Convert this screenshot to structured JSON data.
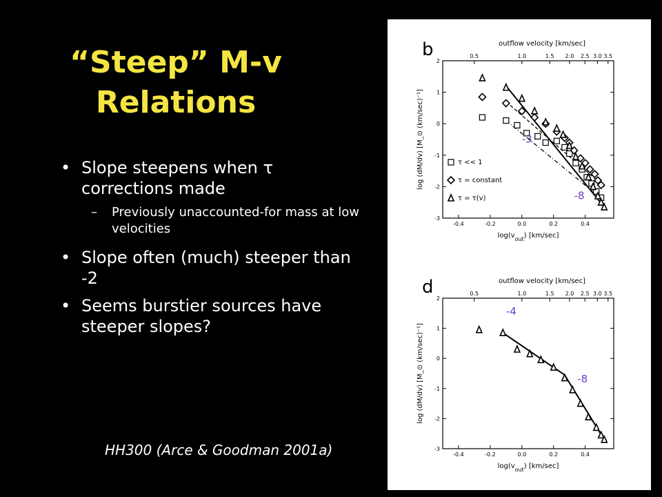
{
  "slide": {
    "title": "“Steep” M-v Relations",
    "bullets": [
      {
        "text": "Slope steepens when τ corrections made",
        "level": 1
      },
      {
        "text": "Previously unaccounted-for mass at low velocities",
        "level": 2
      },
      {
        "text": "Slope often (much) steeper than -2",
        "level": 1
      },
      {
        "text": "Seems burstier sources have steeper slopes?",
        "level": 1
      }
    ],
    "caption": "HH300 (Arce & Goodman 2001a)"
  },
  "colors": {
    "title": "#f5e542",
    "text": "#ffffff",
    "background": "#000000",
    "slope_label": "#6a3fc4"
  },
  "chart_data": [
    {
      "type": "scatter",
      "panel_label": "b",
      "top_axis_label": "outflow velocity  [km/sec]",
      "top_ticks": [
        0.5,
        1.0,
        1.5,
        2.0,
        2.5,
        3.0,
        3.5
      ],
      "top_tick_labels": [
        "0.5",
        "1.0",
        "1.5",
        "2.0",
        "2.5",
        "3.0",
        "3.5"
      ],
      "xlabel": "log(v_out)  [km/sec]",
      "ylabel": "log (dM/dv)  [M_⊙ (km/sec)⁻¹]",
      "xlim": [
        -0.5,
        0.58
      ],
      "ylim": [
        -3,
        2
      ],
      "x_ticks": [
        -0.4,
        -0.2,
        0.0,
        0.2,
        0.4
      ],
      "x_tick_labels": [
        "-0.4",
        "-0.2",
        "0.0",
        "0.2",
        "0.4"
      ],
      "y_ticks": [
        -3,
        -2,
        -1,
        0,
        1,
        2
      ],
      "legend": [
        {
          "symbol": "square",
          "label": "τ << 1"
        },
        {
          "symbol": "diamond",
          "label": "τ = constant"
        },
        {
          "symbol": "triangle",
          "label": "τ = τ(v)"
        }
      ],
      "legend_position": "left",
      "series": [
        {
          "name": "τ << 1",
          "symbol": "square",
          "x": [
            -0.25,
            -0.1,
            -0.03,
            0.03,
            0.1,
            0.15,
            0.22,
            0.27,
            0.3,
            0.34,
            0.38,
            0.41,
            0.44,
            0.47,
            0.5
          ],
          "y": [
            0.2,
            0.1,
            -0.05,
            -0.3,
            -0.4,
            -0.6,
            -0.55,
            -0.75,
            -0.95,
            -1.25,
            -1.45,
            -1.7,
            -1.9,
            -2.15,
            -2.35
          ]
        },
        {
          "name": "τ = constant",
          "symbol": "diamond",
          "x": [
            -0.25,
            -0.1,
            0.0,
            0.08,
            0.15,
            0.22,
            0.27,
            0.3,
            0.33,
            0.37,
            0.4,
            0.43,
            0.46,
            0.48,
            0.5
          ],
          "y": [
            0.85,
            0.65,
            0.4,
            0.2,
            0.0,
            -0.25,
            -0.45,
            -0.6,
            -0.85,
            -1.1,
            -1.25,
            -1.45,
            -1.6,
            -1.8,
            -1.95
          ]
        },
        {
          "name": "τ = τ(v)",
          "symbol": "triangle",
          "x": [
            -0.25,
            -0.1,
            0.0,
            0.08,
            0.15,
            0.22,
            0.26,
            0.3,
            0.34,
            0.38,
            0.42,
            0.45,
            0.48,
            0.5,
            0.52
          ],
          "y": [
            1.45,
            1.15,
            0.8,
            0.4,
            0.05,
            -0.15,
            -0.35,
            -0.7,
            -1.05,
            -1.35,
            -1.7,
            -2.0,
            -2.3,
            -2.5,
            -2.65
          ]
        }
      ],
      "fit_lines": [
        {
          "style": "solid",
          "x": [
            -0.1,
            0.52
          ],
          "y": [
            1.2,
            -2.65
          ]
        },
        {
          "style": "dashed",
          "x": [
            -0.1,
            0.52
          ],
          "y": [
            0.7,
            -2.0
          ]
        },
        {
          "style": "dash-dot",
          "x": [
            -0.1,
            0.52
          ],
          "y": [
            0.1,
            -2.45
          ]
        }
      ],
      "annotations": [
        {
          "text": "-3",
          "x": 0.0,
          "y": -0.6
        },
        {
          "text": "-8",
          "x": 0.33,
          "y": -2.4
        }
      ]
    },
    {
      "type": "scatter",
      "panel_label": "d",
      "top_axis_label": "outflow velocity  [km/sec]",
      "top_ticks": [
        0.5,
        1.0,
        1.5,
        2.0,
        2.5,
        3.0,
        3.5
      ],
      "top_tick_labels": [
        "0.5",
        "1.0",
        "1.5",
        "2.0",
        "2.5",
        "3.0",
        "3.5"
      ],
      "xlabel": "log(v_out)  [km/sec]",
      "ylabel": "log (dM/dv)  [M_⊙ (km/sec)⁻¹]",
      "xlim": [
        -0.5,
        0.58
      ],
      "ylim": [
        -3,
        2
      ],
      "x_ticks": [
        -0.4,
        -0.2,
        0.0,
        0.2,
        0.4
      ],
      "x_tick_labels": [
        "-0.4",
        "-0.2",
        "0.0",
        "0.2",
        "0.4"
      ],
      "y_ticks": [
        -3,
        -2,
        -1,
        0,
        1,
        2
      ],
      "series": [
        {
          "name": "τ = τ(v)",
          "symbol": "triangle",
          "x": [
            -0.27,
            -0.12,
            -0.03,
            0.05,
            0.12,
            0.2,
            0.27,
            0.32,
            0.37,
            0.42,
            0.47,
            0.5,
            0.52
          ],
          "y": [
            0.95,
            0.85,
            0.3,
            0.15,
            -0.05,
            -0.3,
            -0.65,
            -1.05,
            -1.5,
            -1.95,
            -2.3,
            -2.55,
            -2.7
          ]
        }
      ],
      "fit_lines": [
        {
          "style": "solid",
          "x": [
            -0.12,
            0.27,
            0.52
          ],
          "y": [
            0.85,
            -0.55,
            -2.7
          ]
        }
      ],
      "annotations": [
        {
          "text": "-4",
          "x": -0.1,
          "y": 1.45
        },
        {
          "text": "-8",
          "x": 0.35,
          "y": -0.8
        }
      ]
    }
  ]
}
